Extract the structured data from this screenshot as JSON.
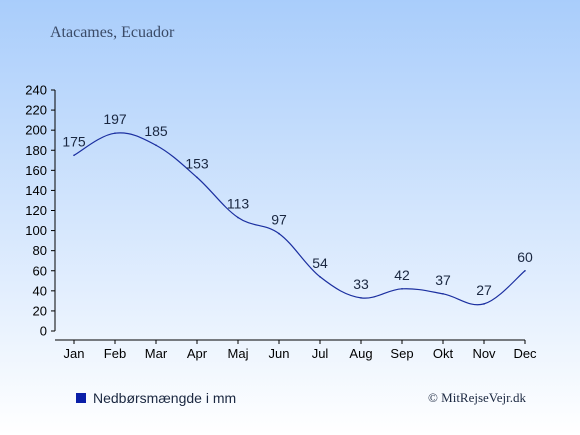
{
  "location": "Atacames, Ecuador",
  "copyright": "© MitRejseVejr.dk",
  "legend": {
    "label": "Nedbørsmængde i mm",
    "marker_color": "#0a1fa8",
    "position": "bottom-left"
  },
  "colors": {
    "line": "#1b2fa0",
    "text": "#1a2740",
    "axis": "#000000",
    "bg_top": "#a9cdfb",
    "bg_bottom": "#ffffff"
  },
  "chart_data": {
    "type": "line",
    "categories": [
      "Jan",
      "Feb",
      "Mar",
      "Apr",
      "Maj",
      "Jun",
      "Jul",
      "Aug",
      "Sep",
      "Okt",
      "Nov",
      "Dec"
    ],
    "series": [
      {
        "name": "Nedbørsmængde i mm",
        "values": [
          175,
          197,
          185,
          153,
          113,
          97,
          54,
          33,
          42,
          37,
          27,
          60
        ]
      }
    ],
    "ylim": [
      0,
      240
    ],
    "yticks": [
      0,
      20,
      40,
      60,
      80,
      100,
      120,
      140,
      160,
      180,
      200,
      220,
      240
    ],
    "grid": false,
    "data_labels": true,
    "background": "vertical gradient light blue to white"
  }
}
